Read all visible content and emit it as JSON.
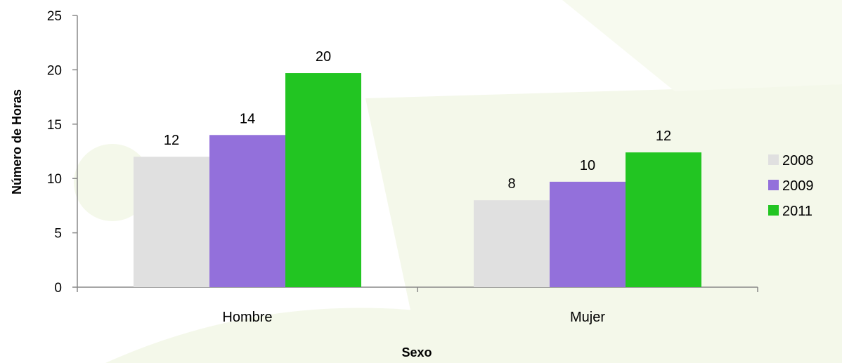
{
  "chart_data": {
    "type": "bar",
    "categories": [
      "Hombre",
      "Mujer"
    ],
    "series": [
      {
        "name": "2008",
        "values": [
          12,
          8
        ],
        "labels": [
          "12",
          "8"
        ],
        "color": "#e0e0e0"
      },
      {
        "name": "2009",
        "values": [
          14,
          9.7
        ],
        "labels": [
          "14",
          "10"
        ],
        "color": "#9370db"
      },
      {
        "name": "2011",
        "values": [
          19.7,
          12.4
        ],
        "labels": [
          "20",
          "12"
        ],
        "color": "#22c522"
      }
    ],
    "xlabel": "Sexo",
    "ylabel": "Número de Horas",
    "ylim": [
      0,
      25
    ],
    "yticks": [
      "0",
      "5",
      "10",
      "15",
      "20",
      "25"
    ],
    "grid": false,
    "legend_position": "right"
  },
  "colors": {
    "axis": "#888888",
    "watermark": "#f4f8ea"
  }
}
